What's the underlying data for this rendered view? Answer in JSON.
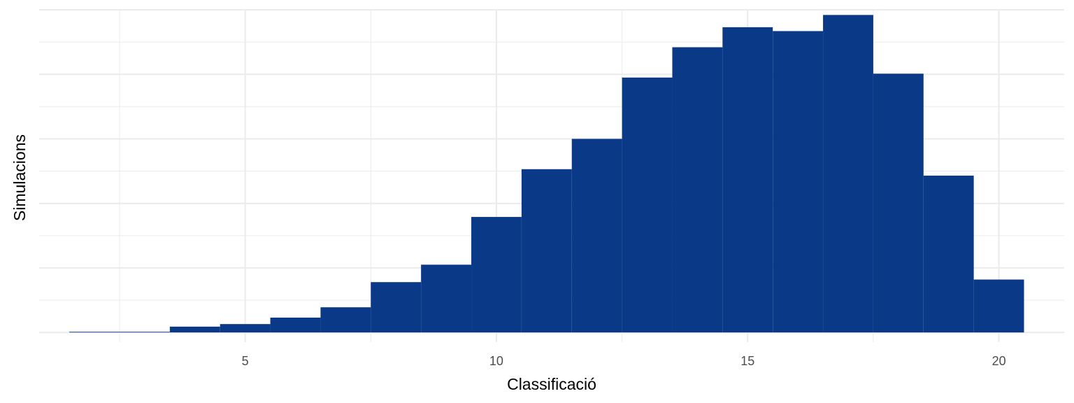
{
  "chart_data": {
    "type": "bar",
    "subtype": "histogram",
    "title": "",
    "xlabel": "Classificació",
    "ylabel": "Simulacions",
    "x_ticks": [
      5,
      10,
      15,
      20
    ],
    "x_tick_labels": [
      "5",
      "10",
      "15",
      "20"
    ],
    "xlim": [
      0.9,
      21.3
    ],
    "y_ticks_shown": false,
    "grid": true,
    "legend": "none",
    "bar_color": "#0a3a87",
    "grid_color": "#ebebeb",
    "bins": [
      {
        "start": 1.5,
        "end": 2.5,
        "value": 0.1
      },
      {
        "start": 2.5,
        "end": 3.5,
        "value": 0.1
      },
      {
        "start": 3.5,
        "end": 4.5,
        "value": 0.9
      },
      {
        "start": 4.5,
        "end": 5.5,
        "value": 1.3
      },
      {
        "start": 5.5,
        "end": 6.5,
        "value": 2.3
      },
      {
        "start": 6.5,
        "end": 7.5,
        "value": 3.9
      },
      {
        "start": 7.5,
        "end": 8.5,
        "value": 7.8
      },
      {
        "start": 8.5,
        "end": 9.5,
        "value": 10.5
      },
      {
        "start": 9.5,
        "end": 10.5,
        "value": 17.9
      },
      {
        "start": 10.5,
        "end": 11.5,
        "value": 25.3
      },
      {
        "start": 11.5,
        "end": 12.5,
        "value": 30.0
      },
      {
        "start": 12.5,
        "end": 13.5,
        "value": 39.5
      },
      {
        "start": 13.5,
        "end": 14.5,
        "value": 44.2
      },
      {
        "start": 14.5,
        "end": 15.5,
        "value": 47.3
      },
      {
        "start": 15.5,
        "end": 16.5,
        "value": 46.7
      },
      {
        "start": 16.5,
        "end": 17.5,
        "value": 49.2
      },
      {
        "start": 17.5,
        "end": 18.5,
        "value": 40.1
      },
      {
        "start": 18.5,
        "end": 19.5,
        "value": 24.3
      },
      {
        "start": 19.5,
        "end": 20.5,
        "value": 8.2
      }
    ],
    "ylim": [
      -1.5,
      50.0
    ]
  }
}
